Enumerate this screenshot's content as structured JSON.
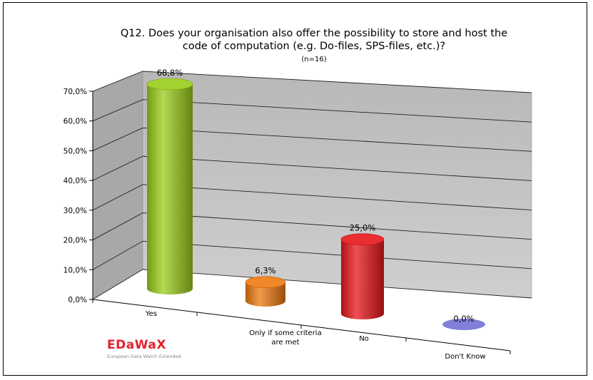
{
  "chart_data": {
    "type": "bar",
    "title_line1": "Q12. Does your organisation also offer the possibility to store and host the",
    "title_line2": "code of computation (e.g. Do-files, SPS-files, etc.)?",
    "subtitle": "(n=16)",
    "categories": [
      "Yes",
      "Only if some criteria are met",
      "No",
      "Don't Know"
    ],
    "category_lines": [
      [
        "Yes"
      ],
      [
        "Only if some criteria",
        "are met"
      ],
      [
        "No"
      ],
      [
        "Don't Know"
      ]
    ],
    "values": [
      68.8,
      6.3,
      25.0,
      0.0
    ],
    "value_labels": [
      "68,8%",
      "6,3%",
      "25,0%",
      "0,0%"
    ],
    "colors": [
      "#9acd1a",
      "#ee7a10",
      "#e8161a",
      "#8080d8"
    ],
    "yticks": [
      "0,0%",
      "10,0%",
      "20,0%",
      "30,0%",
      "40,0%",
      "50,0%",
      "60,0%",
      "70,0%"
    ],
    "ylim": [
      0,
      70
    ],
    "grid": true
  },
  "logo": {
    "name": "EDaWaX",
    "tagline": "European Data Watch Extended"
  }
}
